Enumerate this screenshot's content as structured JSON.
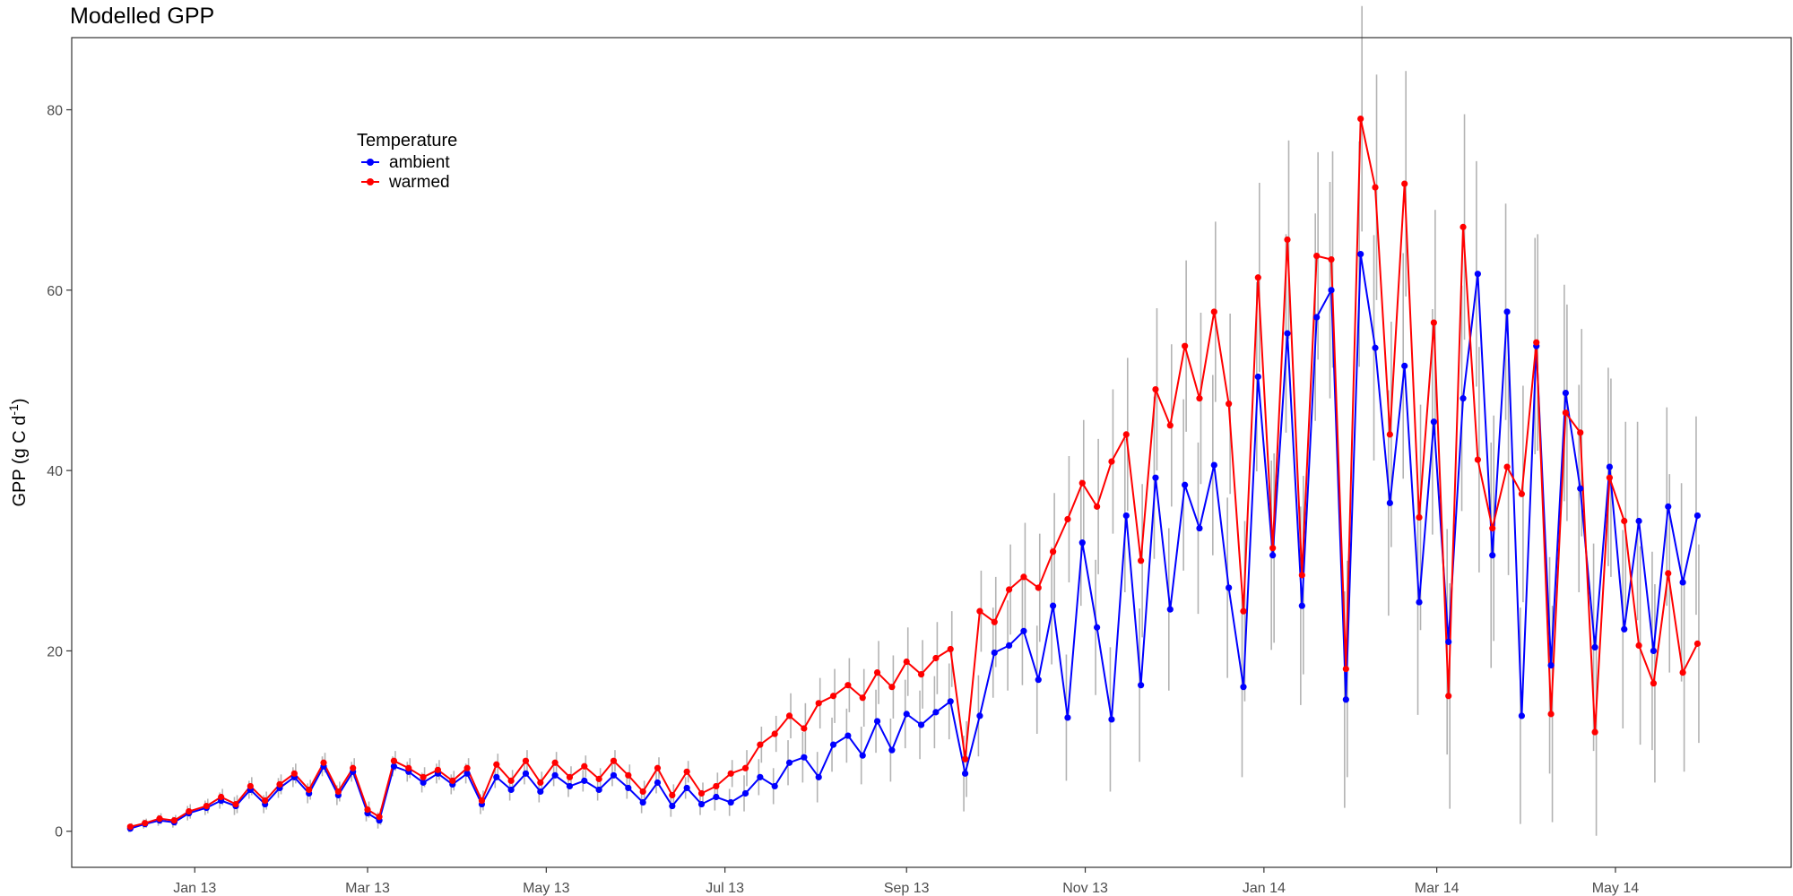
{
  "chart_data": {
    "type": "line",
    "title": "Modelled GPP",
    "xlabel": "",
    "ylabel": {
      "prefix": "GPP (g C d",
      "superscript": "-1",
      "suffix": ")"
    },
    "x_type": "date",
    "x_range": [
      "2012-11-20",
      "2014-06-30"
    ],
    "ylim": [
      -4,
      88
    ],
    "y_ticks": [
      0,
      20,
      40,
      60,
      80
    ],
    "x_ticks": [
      {
        "date": "2013-01-01",
        "label": "Jan 13"
      },
      {
        "date": "2013-03-01",
        "label": "Mar 13"
      },
      {
        "date": "2013-05-01",
        "label": "May 13"
      },
      {
        "date": "2013-07-01",
        "label": "Jul 13"
      },
      {
        "date": "2013-09-01",
        "label": "Sep 13"
      },
      {
        "date": "2013-11-01",
        "label": "Nov 13"
      },
      {
        "date": "2014-01-01",
        "label": "Jan 14"
      },
      {
        "date": "2014-03-01",
        "label": "Mar 14"
      },
      {
        "date": "2014-05-01",
        "label": "May 14"
      }
    ],
    "grid": false,
    "legend": {
      "title": "Temperature",
      "placement": "top-left inside"
    },
    "error_bar_color": "#b3b3b3",
    "series": [
      {
        "name": "ambient",
        "color": "#0000ff",
        "points": [
          [
            "2012-12-10",
            0.3,
            0.4
          ],
          [
            "2012-12-15",
            0.8,
            0.5
          ],
          [
            "2012-12-20",
            1.2,
            0.6
          ],
          [
            "2012-12-25",
            1.0,
            0.6
          ],
          [
            "2012-12-30",
            2.0,
            0.8
          ],
          [
            "2013-01-05",
            2.6,
            0.8
          ],
          [
            "2013-01-10",
            3.4,
            0.9
          ],
          [
            "2013-01-15",
            2.8,
            1.0
          ],
          [
            "2013-01-20",
            4.6,
            1.0
          ],
          [
            "2013-01-25",
            3.0,
            1.0
          ],
          [
            "2013-01-30",
            4.8,
            1.1
          ],
          [
            "2013-02-04",
            6.0,
            1.1
          ],
          [
            "2013-02-09",
            4.2,
            1.1
          ],
          [
            "2013-02-14",
            7.2,
            1.1
          ],
          [
            "2013-02-19",
            4.0,
            1.1
          ],
          [
            "2013-02-24",
            6.6,
            1.1
          ],
          [
            "2013-03-01",
            2.0,
            0.9
          ],
          [
            "2013-03-05",
            1.2,
            0.9
          ],
          [
            "2013-03-10",
            7.2,
            1.1
          ],
          [
            "2013-03-15",
            6.6,
            1.1
          ],
          [
            "2013-03-20",
            5.4,
            1.1
          ],
          [
            "2013-03-25",
            6.4,
            1.1
          ],
          [
            "2013-03-30",
            5.2,
            1.1
          ],
          [
            "2013-04-04",
            6.4,
            1.1
          ],
          [
            "2013-04-09",
            3.0,
            1.1
          ],
          [
            "2013-04-14",
            6.0,
            1.2
          ],
          [
            "2013-04-19",
            4.6,
            1.2
          ],
          [
            "2013-04-24",
            6.4,
            1.2
          ],
          [
            "2013-04-29",
            4.4,
            1.2
          ],
          [
            "2013-05-04",
            6.2,
            1.2
          ],
          [
            "2013-05-09",
            5.0,
            1.2
          ],
          [
            "2013-05-14",
            5.6,
            1.2
          ],
          [
            "2013-05-19",
            4.6,
            1.2
          ],
          [
            "2013-05-24",
            6.2,
            1.2
          ],
          [
            "2013-05-29",
            4.8,
            1.2
          ],
          [
            "2013-06-03",
            3.2,
            1.2
          ],
          [
            "2013-06-08",
            5.4,
            1.2
          ],
          [
            "2013-06-13",
            2.8,
            1.2
          ],
          [
            "2013-06-18",
            4.8,
            1.2
          ],
          [
            "2013-06-23",
            3.0,
            1.2
          ],
          [
            "2013-06-28",
            3.8,
            1.5
          ],
          [
            "2013-07-03",
            3.2,
            1.5
          ],
          [
            "2013-07-08",
            4.2,
            2.0
          ],
          [
            "2013-07-13",
            6.0,
            2.0
          ],
          [
            "2013-07-18",
            5.0,
            2.0
          ],
          [
            "2013-07-23",
            7.6,
            2.5
          ],
          [
            "2013-07-28",
            8.2,
            2.8
          ],
          [
            "2013-08-02",
            6.0,
            2.8
          ],
          [
            "2013-08-07",
            9.6,
            3.0
          ],
          [
            "2013-08-12",
            10.6,
            3.0
          ],
          [
            "2013-08-17",
            8.4,
            3.2
          ],
          [
            "2013-08-22",
            12.2,
            3.5
          ],
          [
            "2013-08-27",
            9.0,
            3.5
          ],
          [
            "2013-09-01",
            13.0,
            3.8
          ],
          [
            "2013-09-06",
            11.8,
            3.8
          ],
          [
            "2013-09-11",
            13.2,
            4.0
          ],
          [
            "2013-09-16",
            14.4,
            4.2
          ],
          [
            "2013-09-21",
            6.4,
            4.2
          ],
          [
            "2013-09-26",
            12.8,
            4.5
          ],
          [
            "2013-10-01",
            19.8,
            5.0
          ],
          [
            "2013-10-06",
            20.6,
            5.0
          ],
          [
            "2013-10-11",
            22.2,
            6.0
          ],
          [
            "2013-10-16",
            16.8,
            6.0
          ],
          [
            "2013-10-21",
            25.0,
            6.5
          ],
          [
            "2013-10-26",
            12.6,
            7.0
          ],
          [
            "2013-10-31",
            32.0,
            7.0
          ],
          [
            "2013-11-05",
            22.6,
            7.5
          ],
          [
            "2013-11-10",
            12.4,
            8.0
          ],
          [
            "2013-11-15",
            35.0,
            8.5
          ],
          [
            "2013-11-20",
            16.2,
            8.5
          ],
          [
            "2013-11-25",
            39.2,
            9.0
          ],
          [
            "2013-11-30",
            24.6,
            9.0
          ],
          [
            "2013-12-05",
            38.4,
            9.5
          ],
          [
            "2013-12-10",
            33.6,
            9.5
          ],
          [
            "2013-12-15",
            40.6,
            10.0
          ],
          [
            "2013-12-20",
            27.0,
            10.0
          ],
          [
            "2013-12-25",
            16.0,
            10.0
          ],
          [
            "2013-12-30",
            50.4,
            10.5
          ],
          [
            "2014-01-04",
            30.6,
            10.5
          ],
          [
            "2014-01-09",
            55.2,
            11.0
          ],
          [
            "2014-01-14",
            25.0,
            11.0
          ],
          [
            "2014-01-19",
            57.0,
            11.5
          ],
          [
            "2014-01-24",
            60.0,
            12.0
          ],
          [
            "2014-01-29",
            14.6,
            12.0
          ],
          [
            "2014-02-03",
            64.0,
            12.5
          ],
          [
            "2014-02-08",
            53.6,
            12.5
          ],
          [
            "2014-02-13",
            36.4,
            12.5
          ],
          [
            "2014-02-18",
            51.6,
            12.5
          ],
          [
            "2014-02-23",
            25.4,
            12.5
          ],
          [
            "2014-02-28",
            45.4,
            12.5
          ],
          [
            "2014-03-05",
            21.0,
            12.5
          ],
          [
            "2014-03-10",
            48.0,
            12.5
          ],
          [
            "2014-03-15",
            61.8,
            12.5
          ],
          [
            "2014-03-20",
            30.6,
            12.5
          ],
          [
            "2014-03-25",
            57.6,
            12.0
          ],
          [
            "2014-03-30",
            12.8,
            12.0
          ],
          [
            "2014-04-04",
            53.8,
            12.0
          ],
          [
            "2014-04-09",
            18.4,
            12.0
          ],
          [
            "2014-04-14",
            48.6,
            12.0
          ],
          [
            "2014-04-19",
            38.0,
            11.5
          ],
          [
            "2014-04-24",
            20.4,
            11.5
          ],
          [
            "2014-04-29",
            40.4,
            11.0
          ],
          [
            "2014-05-04",
            22.4,
            11.0
          ],
          [
            "2014-05-09",
            34.4,
            11.0
          ],
          [
            "2014-05-14",
            20.0,
            11.0
          ],
          [
            "2014-05-19",
            36.0,
            11.0
          ],
          [
            "2014-05-24",
            27.6,
            11.0
          ],
          [
            "2014-05-29",
            35.0,
            11.0
          ]
        ]
      },
      {
        "name": "warmed",
        "color": "#ff0000",
        "points": [
          [
            "2012-12-10",
            0.5,
            0.4
          ],
          [
            "2012-12-15",
            0.9,
            0.5
          ],
          [
            "2012-12-20",
            1.4,
            0.6
          ],
          [
            "2012-12-25",
            1.2,
            0.6
          ],
          [
            "2012-12-30",
            2.2,
            0.8
          ],
          [
            "2013-01-05",
            2.8,
            0.8
          ],
          [
            "2013-01-10",
            3.8,
            0.9
          ],
          [
            "2013-01-15",
            3.0,
            1.0
          ],
          [
            "2013-01-20",
            5.0,
            1.0
          ],
          [
            "2013-01-25",
            3.4,
            1.0
          ],
          [
            "2013-01-30",
            5.2,
            1.1
          ],
          [
            "2013-02-04",
            6.4,
            1.1
          ],
          [
            "2013-02-09",
            4.6,
            1.1
          ],
          [
            "2013-02-14",
            7.6,
            1.1
          ],
          [
            "2013-02-19",
            4.4,
            1.1
          ],
          [
            "2013-02-24",
            7.0,
            1.1
          ],
          [
            "2013-03-01",
            2.4,
            0.9
          ],
          [
            "2013-03-05",
            1.6,
            0.9
          ],
          [
            "2013-03-10",
            7.8,
            1.1
          ],
          [
            "2013-03-15",
            7.0,
            1.1
          ],
          [
            "2013-03-20",
            6.0,
            1.1
          ],
          [
            "2013-03-25",
            6.8,
            1.1
          ],
          [
            "2013-03-30",
            5.6,
            1.1
          ],
          [
            "2013-04-04",
            7.0,
            1.1
          ],
          [
            "2013-04-09",
            3.4,
            1.1
          ],
          [
            "2013-04-14",
            7.4,
            1.2
          ],
          [
            "2013-04-19",
            5.6,
            1.2
          ],
          [
            "2013-04-24",
            7.8,
            1.2
          ],
          [
            "2013-04-29",
            5.4,
            1.2
          ],
          [
            "2013-05-04",
            7.6,
            1.2
          ],
          [
            "2013-05-09",
            6.0,
            1.2
          ],
          [
            "2013-05-14",
            7.2,
            1.2
          ],
          [
            "2013-05-19",
            5.8,
            1.2
          ],
          [
            "2013-05-24",
            7.8,
            1.2
          ],
          [
            "2013-05-29",
            6.2,
            1.2
          ],
          [
            "2013-06-03",
            4.4,
            1.2
          ],
          [
            "2013-06-08",
            7.0,
            1.2
          ],
          [
            "2013-06-13",
            4.0,
            1.2
          ],
          [
            "2013-06-18",
            6.6,
            1.2
          ],
          [
            "2013-06-23",
            4.2,
            1.2
          ],
          [
            "2013-06-28",
            5.0,
            1.5
          ],
          [
            "2013-07-03",
            6.4,
            1.5
          ],
          [
            "2013-07-08",
            7.0,
            2.0
          ],
          [
            "2013-07-13",
            9.6,
            2.0
          ],
          [
            "2013-07-18",
            10.8,
            2.0
          ],
          [
            "2013-07-23",
            12.8,
            2.5
          ],
          [
            "2013-07-28",
            11.4,
            2.8
          ],
          [
            "2013-08-02",
            14.2,
            2.8
          ],
          [
            "2013-08-07",
            15.0,
            3.0
          ],
          [
            "2013-08-12",
            16.2,
            3.0
          ],
          [
            "2013-08-17",
            14.8,
            3.2
          ],
          [
            "2013-08-22",
            17.6,
            3.5
          ],
          [
            "2013-08-27",
            16.0,
            3.5
          ],
          [
            "2013-09-01",
            18.8,
            3.8
          ],
          [
            "2013-09-06",
            17.4,
            3.8
          ],
          [
            "2013-09-11",
            19.2,
            4.0
          ],
          [
            "2013-09-16",
            20.2,
            4.2
          ],
          [
            "2013-09-21",
            8.0,
            4.2
          ],
          [
            "2013-09-26",
            24.4,
            4.5
          ],
          [
            "2013-10-01",
            23.2,
            5.0
          ],
          [
            "2013-10-06",
            26.8,
            5.0
          ],
          [
            "2013-10-11",
            28.2,
            6.0
          ],
          [
            "2013-10-16",
            27.0,
            6.0
          ],
          [
            "2013-10-21",
            31.0,
            6.5
          ],
          [
            "2013-10-26",
            34.6,
            7.0
          ],
          [
            "2013-10-31",
            38.6,
            7.0
          ],
          [
            "2013-11-05",
            36.0,
            7.5
          ],
          [
            "2013-11-10",
            41.0,
            8.0
          ],
          [
            "2013-11-15",
            44.0,
            8.5
          ],
          [
            "2013-11-20",
            30.0,
            8.5
          ],
          [
            "2013-11-25",
            49.0,
            9.0
          ],
          [
            "2013-11-30",
            45.0,
            9.0
          ],
          [
            "2013-12-05",
            53.8,
            9.5
          ],
          [
            "2013-12-10",
            48.0,
            9.5
          ],
          [
            "2013-12-15",
            57.6,
            10.0
          ],
          [
            "2013-12-20",
            47.4,
            10.0
          ],
          [
            "2013-12-25",
            24.4,
            10.0
          ],
          [
            "2013-12-30",
            61.4,
            10.5
          ],
          [
            "2014-01-04",
            31.4,
            10.5
          ],
          [
            "2014-01-09",
            65.6,
            11.0
          ],
          [
            "2014-01-14",
            28.4,
            11.0
          ],
          [
            "2014-01-19",
            63.8,
            11.5
          ],
          [
            "2014-01-24",
            63.4,
            12.0
          ],
          [
            "2014-01-29",
            18.0,
            12.0
          ],
          [
            "2014-02-03",
            79.0,
            12.5
          ],
          [
            "2014-02-08",
            71.4,
            12.5
          ],
          [
            "2014-02-13",
            44.0,
            12.5
          ],
          [
            "2014-02-18",
            71.8,
            12.5
          ],
          [
            "2014-02-23",
            34.8,
            12.5
          ],
          [
            "2014-02-28",
            56.4,
            12.5
          ],
          [
            "2014-03-05",
            15.0,
            12.5
          ],
          [
            "2014-03-10",
            67.0,
            12.5
          ],
          [
            "2014-03-15",
            41.2,
            12.5
          ],
          [
            "2014-03-20",
            33.6,
            12.5
          ],
          [
            "2014-03-25",
            40.4,
            12.0
          ],
          [
            "2014-03-30",
            37.4,
            12.0
          ],
          [
            "2014-04-04",
            54.2,
            12.0
          ],
          [
            "2014-04-09",
            13.0,
            12.0
          ],
          [
            "2014-04-14",
            46.4,
            12.0
          ],
          [
            "2014-04-19",
            44.2,
            11.5
          ],
          [
            "2014-04-24",
            11.0,
            11.5
          ],
          [
            "2014-04-29",
            39.2,
            11.0
          ],
          [
            "2014-05-04",
            34.4,
            11.0
          ],
          [
            "2014-05-09",
            20.6,
            11.0
          ],
          [
            "2014-05-14",
            16.4,
            11.0
          ],
          [
            "2014-05-19",
            28.6,
            11.0
          ],
          [
            "2014-05-24",
            17.6,
            11.0
          ],
          [
            "2014-05-29",
            20.8,
            11.0
          ]
        ]
      }
    ]
  }
}
